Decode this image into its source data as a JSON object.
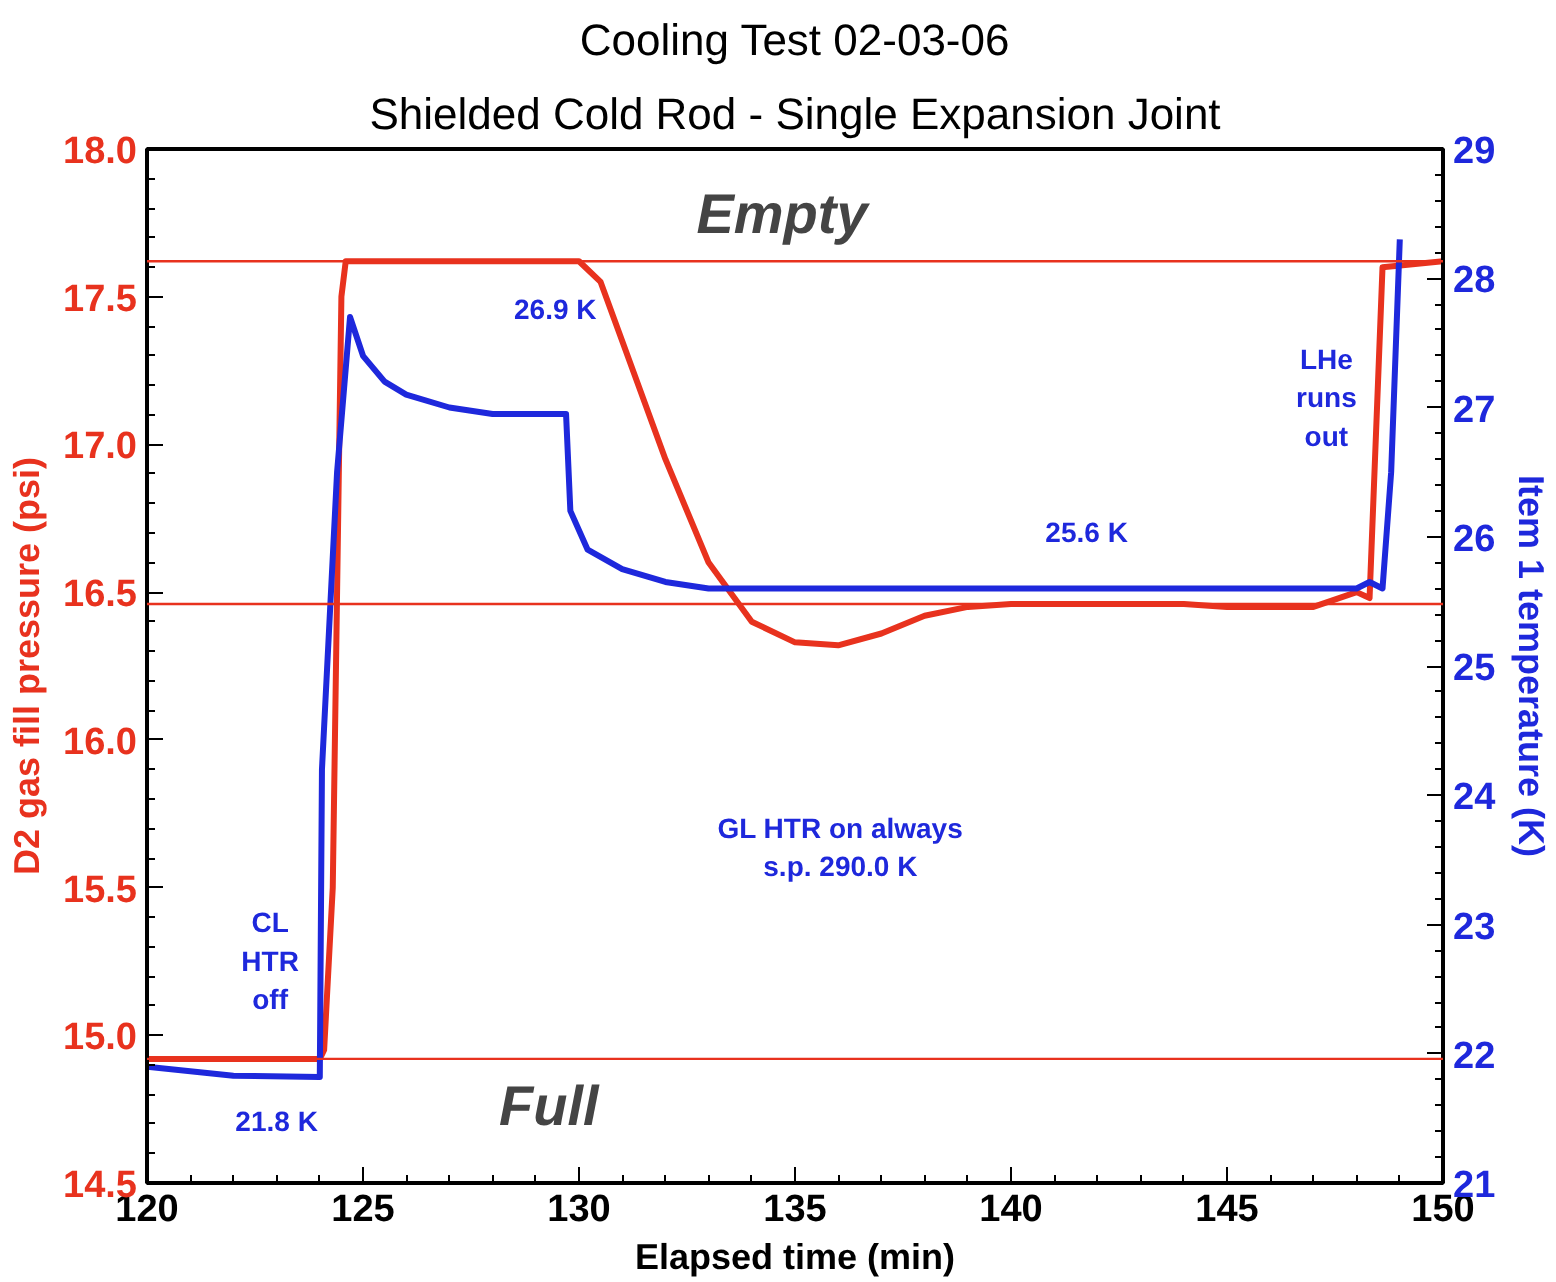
{
  "chart_data": {
    "type": "line",
    "title": "Cooling Test 02-03-06",
    "subtitle": "Shielded Cold Rod - Single Expansion Joint",
    "xlabel": "Elapsed time (min)",
    "ylabel": "D2 gas fill pressure (psi)",
    "y2label": "Item 1 temperature (K)",
    "xlim": [
      120,
      150
    ],
    "xticks": [
      120,
      125,
      130,
      135,
      140,
      145,
      150
    ],
    "ylim": [
      14.5,
      18.0
    ],
    "yticks": [
      {
        "value": 14.5,
        "label": "14.5"
      },
      {
        "value": 15.0,
        "label": "15.0"
      },
      {
        "value": 15.5,
        "label": "15.5"
      },
      {
        "value": 16.0,
        "label": "16.0"
      },
      {
        "value": 16.5,
        "label": "16.5"
      },
      {
        "value": 17.0,
        "label": "17.0"
      },
      {
        "value": 17.5,
        "label": "17.5"
      },
      {
        "value": 18.0,
        "label": "18.0"
      }
    ],
    "y2lim": [
      21,
      29
    ],
    "y2ticks": [
      21,
      22,
      23,
      24,
      25,
      26,
      27,
      28,
      29
    ],
    "series": [
      {
        "color": "#e8321e",
        "x": [
          120,
          124,
          124.1,
          124.3,
          124.5,
          124.6,
          130,
          130.5,
          131,
          132,
          133,
          134,
          135,
          136,
          137,
          138,
          139,
          140,
          144,
          145,
          147,
          148,
          148.3,
          148.6,
          150
        ],
        "values": [
          14.92,
          14.92,
          14.95,
          15.5,
          17.5,
          17.62,
          17.62,
          17.55,
          17.35,
          16.95,
          16.6,
          16.4,
          16.33,
          16.32,
          16.36,
          16.42,
          16.45,
          16.46,
          16.46,
          16.45,
          16.45,
          16.5,
          16.48,
          17.6,
          17.62
        ]
      },
      {
        "color": "#1e28dc",
        "axis": "y2",
        "x": [
          120,
          122,
          124,
          124.05,
          124.4,
          124.7,
          125,
          125.5,
          126,
          127,
          128,
          129.7,
          129.8,
          130.2,
          131,
          132,
          133,
          148,
          148.3,
          148.6,
          148.8,
          149
        ],
        "values": [
          21.9,
          21.83,
          21.82,
          24.2,
          26.5,
          27.7,
          27.4,
          27.2,
          27.1,
          27.0,
          26.95,
          26.95,
          26.2,
          25.9,
          25.75,
          25.65,
          25.6,
          25.6,
          25.65,
          25.6,
          26.5,
          28.3
        ]
      }
    ],
    "ref_lines": [
      {
        "axis": "y",
        "value": 17.62,
        "label": "Empty",
        "color": "#e8321e"
      },
      {
        "axis": "y",
        "value": 16.46,
        "label": null,
        "color": "#e8321e"
      },
      {
        "axis": "y",
        "value": 14.92,
        "label": "Full",
        "color": "#e8321e"
      }
    ],
    "annotations": [
      "26.9 K",
      "25.6 K",
      "CL\nHTR\noff",
      "21.8 K",
      "GL HTR on always\ns.p. 290.0 K",
      "LHe\nruns\nout"
    ],
    "grid": false
  }
}
